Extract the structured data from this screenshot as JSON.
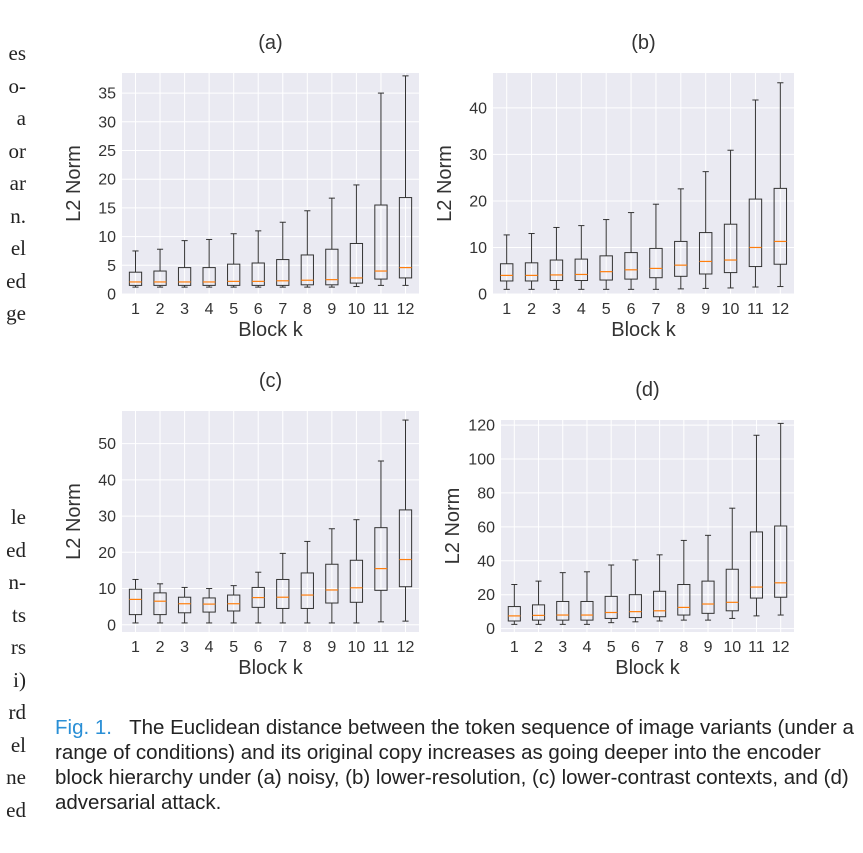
{
  "left_text_fragments": {
    "block1": [
      "es",
      "o-",
      "a",
      "or",
      "ar",
      "n.",
      "el",
      "ed",
      "ge"
    ],
    "block2": [
      "le",
      "ed",
      "n-",
      "ts",
      "rs",
      "i)",
      "rd",
      "el",
      "ne",
      "ed"
    ]
  },
  "caption": {
    "label": "Fig. 1.",
    "text": "The Euclidean distance between the token sequence of image variants (under a range of conditions) and its original copy increases as going deeper into the encoder block hierarchy under (a) noisy, (b) lower-resolution, (c) lower-contrast contexts, and (d) adversarial attack."
  },
  "colors": {
    "panel_bg": "#eaeaf2",
    "grid": "#ffffff",
    "box_edge": "#333333",
    "median": "#ff7f0e",
    "caption_label": "#2a8fd6"
  },
  "chart_data": [
    {
      "type": "box",
      "title": "(a)",
      "xlabel": "Block k",
      "ylabel": "L2 Norm",
      "categories": [
        "1",
        "2",
        "3",
        "4",
        "5",
        "6",
        "7",
        "8",
        "9",
        "10",
        "11",
        "12"
      ],
      "ylim": [
        0,
        38.5
      ],
      "yticks": [
        0,
        5,
        10,
        15,
        20,
        25,
        30,
        35
      ],
      "grid": true,
      "boxes": [
        {
          "whislo": 1.2,
          "q1": 1.5,
          "med": 2.1,
          "q3": 3.8,
          "whishi": 7.5
        },
        {
          "whislo": 1.2,
          "q1": 1.5,
          "med": 2.1,
          "q3": 4.0,
          "whishi": 7.8
        },
        {
          "whislo": 1.2,
          "q1": 1.5,
          "med": 2.1,
          "q3": 4.6,
          "whishi": 9.3
        },
        {
          "whislo": 1.2,
          "q1": 1.5,
          "med": 2.1,
          "q3": 4.6,
          "whishi": 9.5
        },
        {
          "whislo": 1.2,
          "q1": 1.5,
          "med": 2.2,
          "q3": 5.2,
          "whishi": 10.5
        },
        {
          "whislo": 1.2,
          "q1": 1.5,
          "med": 2.2,
          "q3": 5.4,
          "whishi": 11.0
        },
        {
          "whislo": 1.2,
          "q1": 1.5,
          "med": 2.3,
          "q3": 6.0,
          "whishi": 12.5
        },
        {
          "whislo": 1.2,
          "q1": 1.6,
          "med": 2.4,
          "q3": 6.8,
          "whishi": 14.5
        },
        {
          "whislo": 1.2,
          "q1": 1.6,
          "med": 2.5,
          "q3": 7.8,
          "whishi": 16.7
        },
        {
          "whislo": 1.3,
          "q1": 1.9,
          "med": 2.8,
          "q3": 8.8,
          "whishi": 19.0
        },
        {
          "whislo": 1.5,
          "q1": 2.6,
          "med": 4.0,
          "q3": 15.5,
          "whishi": 35.0
        },
        {
          "whislo": 1.5,
          "q1": 2.8,
          "med": 4.6,
          "q3": 16.8,
          "whishi": 38.0
        }
      ]
    },
    {
      "type": "box",
      "title": "(b)",
      "xlabel": "Block k",
      "ylabel": "L2 Norm",
      "categories": [
        "1",
        "2",
        "3",
        "4",
        "5",
        "6",
        "7",
        "8",
        "9",
        "10",
        "11",
        "12"
      ],
      "ylim": [
        0,
        47.5
      ],
      "yticks": [
        0,
        10,
        20,
        30,
        40
      ],
      "grid": true,
      "boxes": [
        {
          "whislo": 1.0,
          "q1": 2.8,
          "med": 4.0,
          "q3": 6.5,
          "whishi": 12.7
        },
        {
          "whislo": 1.0,
          "q1": 2.8,
          "med": 4.0,
          "q3": 6.7,
          "whishi": 13.0
        },
        {
          "whislo": 1.0,
          "q1": 2.9,
          "med": 4.1,
          "q3": 7.3,
          "whishi": 14.3
        },
        {
          "whislo": 1.0,
          "q1": 2.9,
          "med": 4.2,
          "q3": 7.5,
          "whishi": 14.7
        },
        {
          "whislo": 1.0,
          "q1": 3.0,
          "med": 4.8,
          "q3": 8.2,
          "whishi": 16.0
        },
        {
          "whislo": 1.0,
          "q1": 3.2,
          "med": 5.2,
          "q3": 8.9,
          "whishi": 17.5
        },
        {
          "whislo": 1.0,
          "q1": 3.5,
          "med": 5.5,
          "q3": 9.8,
          "whishi": 19.3
        },
        {
          "whislo": 1.1,
          "q1": 3.8,
          "med": 6.2,
          "q3": 11.3,
          "whishi": 22.6
        },
        {
          "whislo": 1.2,
          "q1": 4.3,
          "med": 7.0,
          "q3": 13.2,
          "whishi": 26.3
        },
        {
          "whislo": 1.3,
          "q1": 4.6,
          "med": 7.3,
          "q3": 15.0,
          "whishi": 30.9
        },
        {
          "whislo": 1.5,
          "q1": 5.9,
          "med": 10.0,
          "q3": 20.4,
          "whishi": 41.7
        },
        {
          "whislo": 1.6,
          "q1": 6.4,
          "med": 11.3,
          "q3": 22.7,
          "whishi": 45.4
        }
      ]
    },
    {
      "type": "box",
      "title": "(c)",
      "xlabel": "Block k",
      "ylabel": "L2 Norm",
      "categories": [
        "1",
        "2",
        "3",
        "4",
        "5",
        "6",
        "7",
        "8",
        "9",
        "10",
        "11",
        "12"
      ],
      "ylim": [
        -2,
        59
      ],
      "yticks": [
        0,
        10,
        20,
        30,
        40,
        50
      ],
      "grid": true,
      "boxes": [
        {
          "whislo": 0.5,
          "q1": 2.8,
          "med": 7.0,
          "q3": 9.8,
          "whishi": 12.5
        },
        {
          "whislo": 0.5,
          "q1": 2.8,
          "med": 6.5,
          "q3": 8.8,
          "whishi": 11.3
        },
        {
          "whislo": 0.5,
          "q1": 3.3,
          "med": 5.8,
          "q3": 7.6,
          "whishi": 10.3
        },
        {
          "whislo": 0.5,
          "q1": 3.5,
          "med": 5.7,
          "q3": 7.4,
          "whishi": 10.0
        },
        {
          "whislo": 0.5,
          "q1": 3.8,
          "med": 5.8,
          "q3": 8.2,
          "whishi": 10.8
        },
        {
          "whislo": 0.5,
          "q1": 4.8,
          "med": 7.5,
          "q3": 10.3,
          "whishi": 14.5
        },
        {
          "whislo": 0.5,
          "q1": 4.5,
          "med": 7.6,
          "q3": 12.5,
          "whishi": 19.7
        },
        {
          "whislo": 0.5,
          "q1": 4.5,
          "med": 8.2,
          "q3": 14.3,
          "whishi": 23.0
        },
        {
          "whislo": 0.5,
          "q1": 6.0,
          "med": 9.6,
          "q3": 16.7,
          "whishi": 26.5
        },
        {
          "whislo": 0.5,
          "q1": 6.2,
          "med": 10.2,
          "q3": 17.8,
          "whishi": 29.0
        },
        {
          "whislo": 0.8,
          "q1": 9.5,
          "med": 15.5,
          "q3": 26.8,
          "whishi": 45.2
        },
        {
          "whislo": 1.0,
          "q1": 10.5,
          "med": 18.0,
          "q3": 31.7,
          "whishi": 56.5
        }
      ]
    },
    {
      "type": "box",
      "title": "(d)",
      "xlabel": "Block k",
      "ylabel": "L2 Norm",
      "categories": [
        "1",
        "2",
        "3",
        "4",
        "5",
        "6",
        "7",
        "8",
        "9",
        "10",
        "11",
        "12"
      ],
      "ylim": [
        -2,
        123
      ],
      "yticks": [
        0,
        20,
        40,
        60,
        80,
        100,
        120
      ],
      "grid": true,
      "boxes": [
        {
          "whislo": 2.5,
          "q1": 4.5,
          "med": 7.5,
          "q3": 13.0,
          "whishi": 26.0
        },
        {
          "whislo": 2.5,
          "q1": 5.0,
          "med": 7.8,
          "q3": 14.0,
          "whishi": 28.0
        },
        {
          "whislo": 2.5,
          "q1": 5.0,
          "med": 8.0,
          "q3": 16.0,
          "whishi": 33.0
        },
        {
          "whislo": 2.5,
          "q1": 5.0,
          "med": 8.0,
          "q3": 16.0,
          "whishi": 33.5
        },
        {
          "whislo": 3.5,
          "q1": 6.0,
          "med": 9.5,
          "q3": 19.0,
          "whishi": 37.5
        },
        {
          "whislo": 4.0,
          "q1": 6.5,
          "med": 10.0,
          "q3": 20.0,
          "whishi": 40.5
        },
        {
          "whislo": 4.5,
          "q1": 7.0,
          "med": 10.5,
          "q3": 22.0,
          "whishi": 43.5
        },
        {
          "whislo": 5.0,
          "q1": 8.0,
          "med": 12.5,
          "q3": 26.0,
          "whishi": 52.0
        },
        {
          "whislo": 5.0,
          "q1": 9.0,
          "med": 14.5,
          "q3": 28.0,
          "whishi": 55.0
        },
        {
          "whislo": 6.0,
          "q1": 10.5,
          "med": 15.5,
          "q3": 35.0,
          "whishi": 71.0
        },
        {
          "whislo": 7.5,
          "q1": 18.0,
          "med": 24.5,
          "q3": 57.0,
          "whishi": 114.0
        },
        {
          "whislo": 8.0,
          "q1": 18.5,
          "med": 27.0,
          "q3": 60.5,
          "whishi": 121.0
        }
      ]
    }
  ]
}
